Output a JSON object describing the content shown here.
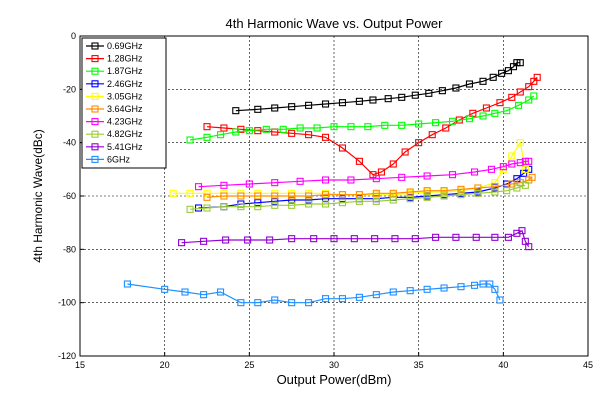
{
  "chart_data": {
    "type": "line",
    "title": "4th Harmonic Wave vs. Output Power",
    "xlabel": "Output Power(dBm)",
    "ylabel": "4th Harmonic Wave(dBc)",
    "xlim": [
      15,
      45
    ],
    "ylim": [
      -120,
      0
    ],
    "xticks": [
      "15",
      "20",
      "25",
      "30",
      "35",
      "40",
      "45"
    ],
    "yticks": [
      "0",
      "-20",
      "-40",
      "-60",
      "-80",
      "-100",
      "-120"
    ],
    "grid": true,
    "legend_position": "top-left",
    "series": [
      {
        "name": "0.69GHz",
        "color": "#000000",
        "marker": "square",
        "x": [
          24.2,
          25.5,
          26.5,
          27.5,
          28.5,
          29.5,
          30.5,
          31.5,
          32.3,
          33.2,
          34.0,
          34.8,
          35.6,
          36.4,
          37.2,
          38.0,
          38.8,
          39.4,
          39.9,
          40.3,
          40.6,
          40.8,
          41.0
        ],
        "y": [
          -28,
          -27.5,
          -27,
          -26.5,
          -26,
          -25.5,
          -25,
          -24.5,
          -24,
          -23.5,
          -23,
          -22.2,
          -21.5,
          -20.5,
          -19.5,
          -18,
          -17,
          -15.5,
          -14,
          -13,
          -11.5,
          -10,
          -10
        ]
      },
      {
        "name": "1.28GHz",
        "color": "#ff0000",
        "marker": "square",
        "x": [
          22.5,
          23.5,
          24.5,
          25.5,
          26.5,
          27.5,
          28.5,
          29.5,
          30.5,
          31.5,
          32.3,
          32.8,
          33.5,
          34.2,
          35.0,
          35.8,
          36.6,
          37.4,
          38.2,
          39.0,
          39.8,
          40.5,
          41.0,
          41.5,
          41.8,
          42.0
        ],
        "y": [
          -34,
          -34.5,
          -35,
          -35.5,
          -36,
          -36.5,
          -37,
          -38,
          -42,
          -47,
          -52,
          -51,
          -48,
          -43.5,
          -40,
          -37,
          -34.5,
          -31.5,
          -29,
          -27,
          -25,
          -23,
          -21,
          -19,
          -17,
          -15.5
        ]
      },
      {
        "name": "1.87GHz",
        "color": "#00ff00",
        "marker": "square",
        "x": [
          21.5,
          22.5,
          23.3,
          24.2,
          25.0,
          26.0,
          27.0,
          28.0,
          29.0,
          30.0,
          31.0,
          32.0,
          33.0,
          34.0,
          35.0,
          36.0,
          37.0,
          38.0,
          38.8,
          39.5,
          40.2,
          40.9,
          41.5,
          41.8
        ],
        "y": [
          -39,
          -38,
          -37,
          -36,
          -35.5,
          -35,
          -35,
          -34.5,
          -34.5,
          -34,
          -34,
          -34,
          -33.5,
          -33.5,
          -33,
          -32.5,
          -32,
          -31,
          -30,
          -29,
          -28,
          -26,
          -24,
          -22.5
        ]
      },
      {
        "name": "2.46GHz",
        "color": "#0000ff",
        "marker": "square",
        "x": [
          22.0,
          23.5,
          24.5,
          25.5,
          26.5,
          27.5,
          28.5,
          29.5,
          30.5,
          31.5,
          32.5,
          33.5,
          34.5,
          35.5,
          36.5,
          37.5,
          38.5,
          39.5,
          40.2,
          40.8,
          41.2,
          41.5
        ],
        "y": [
          -64.5,
          -64,
          -63,
          -62.5,
          -62,
          -61.5,
          -61.5,
          -61,
          -61,
          -61,
          -61,
          -60.5,
          -60.5,
          -60,
          -59.5,
          -59,
          -58.5,
          -57,
          -55.5,
          -53.5,
          -51.5,
          -50
        ]
      },
      {
        "name": "3.05GHz",
        "color": "#ffff00",
        "marker": "square",
        "x": [
          20.5,
          21.5,
          22.5,
          23.5,
          24.5,
          25.5,
          26.5,
          27.5,
          28.5,
          29.5,
          30.5,
          31.5,
          32.5,
          33.5,
          34.5,
          35.5,
          36.5,
          37.5,
          38.5,
          39.5,
          40.0,
          40.5,
          41.0,
          41.3
        ],
        "y": [
          -59,
          -59,
          -59,
          -59,
          -59,
          -59,
          -59,
          -59,
          -59,
          -59,
          -59.5,
          -59.5,
          -59.5,
          -59.5,
          -59,
          -58.5,
          -58.5,
          -58,
          -57,
          -55,
          -50,
          -45,
          -40,
          -50
        ]
      },
      {
        "name": "3.64GHz",
        "color": "#ff8c00",
        "marker": "square",
        "x": [
          22.5,
          23.5,
          24.5,
          25.5,
          26.5,
          27.5,
          28.5,
          29.5,
          30.5,
          31.5,
          32.5,
          33.5,
          34.5,
          35.5,
          36.5,
          37.5,
          38.5,
          39.5,
          40.5,
          41.0,
          41.5,
          41.7
        ],
        "y": [
          -60.5,
          -60,
          -60,
          -60,
          -60,
          -60,
          -60,
          -59.5,
          -59.5,
          -59.5,
          -59,
          -59,
          -58.5,
          -58,
          -58,
          -57.5,
          -57,
          -56.5,
          -55.5,
          -55,
          -54,
          -53
        ]
      },
      {
        "name": "4.23GHz",
        "color": "#ff00ff",
        "marker": "square",
        "x": [
          22.0,
          23.5,
          25.0,
          26.5,
          28.0,
          29.5,
          31.0,
          32.5,
          34.0,
          35.5,
          37.0,
          38.3,
          39.3,
          40.0,
          40.5,
          41.0,
          41.3,
          41.5
        ],
        "y": [
          -56.5,
          -56,
          -55.5,
          -55,
          -54.5,
          -54,
          -54,
          -53.5,
          -53,
          -52.5,
          -52,
          -51,
          -50,
          -49,
          -48,
          -47.5,
          -47,
          -47
        ]
      },
      {
        "name": "4.82GHz",
        "color": "#9acd32",
        "marker": "square",
        "x": [
          21.5,
          22.5,
          23.5,
          24.5,
          25.5,
          26.5,
          27.5,
          28.5,
          29.5,
          30.5,
          31.5,
          32.5,
          33.5,
          34.5,
          35.5,
          36.5,
          37.5,
          38.5,
          39.5,
          40.2,
          40.8,
          41.3
        ],
        "y": [
          -65,
          -64.5,
          -64,
          -64,
          -64,
          -63.5,
          -63.5,
          -63,
          -63,
          -62.5,
          -62,
          -62,
          -61.5,
          -61,
          -60.5,
          -60,
          -59.5,
          -59,
          -58.5,
          -58,
          -57,
          -56
        ]
      },
      {
        "name": "5.41GHz",
        "color": "#9400d3",
        "marker": "square",
        "x": [
          21.0,
          22.3,
          23.6,
          24.9,
          26.2,
          27.5,
          28.8,
          30.0,
          31.2,
          32.4,
          33.6,
          34.8,
          36.0,
          37.2,
          38.4,
          39.5,
          40.3,
          40.8,
          41.1,
          41.3,
          41.5
        ],
        "y": [
          -77.5,
          -77,
          -76.5,
          -76.5,
          -76.5,
          -76,
          -76,
          -76,
          -76,
          -76,
          -76,
          -76,
          -75.5,
          -75.5,
          -75.5,
          -75.5,
          -75.5,
          -74,
          -73,
          -77,
          -79
        ]
      },
      {
        "name": "6GHz",
        "color": "#1e90ff",
        "marker": "square",
        "x": [
          17.8,
          20.0,
          21.2,
          22.3,
          23.3,
          24.5,
          25.5,
          26.5,
          27.5,
          28.5,
          29.5,
          30.5,
          31.5,
          32.5,
          33.5,
          34.5,
          35.5,
          36.5,
          37.5,
          38.3,
          38.8,
          39.2,
          39.5,
          39.8
        ],
        "y": [
          -93,
          -95,
          -96,
          -97,
          -96,
          -100,
          -100,
          -99,
          -100,
          -100,
          -98.5,
          -98.5,
          -98,
          -97,
          -96,
          -95.5,
          -95,
          -94.5,
          -94,
          -93.5,
          -93,
          -93,
          -95,
          -99
        ]
      }
    ]
  }
}
